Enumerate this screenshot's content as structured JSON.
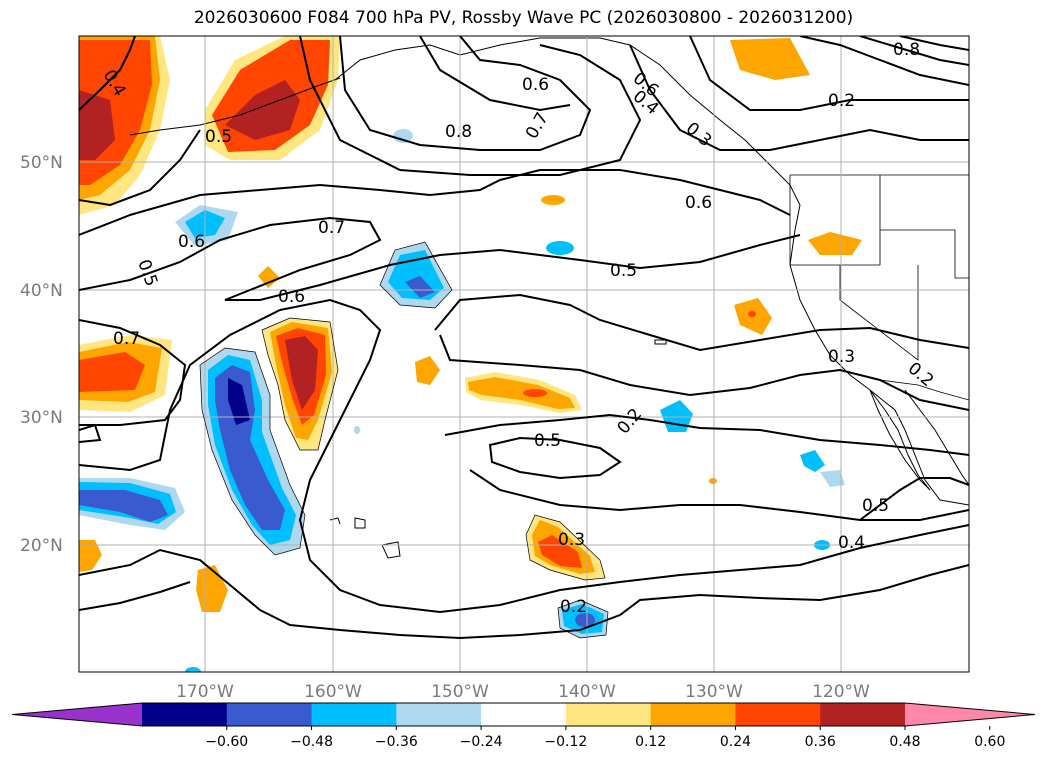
{
  "title": "2026030600 F084 700 hPa PV, Rossby Wave PC (2026030800 - 2026031200)",
  "lat_labels": [
    "50°N",
    "40°N",
    "30°N",
    "20°N"
  ],
  "lon_labels": [
    "170°W",
    "160°W",
    "150°W",
    "140°W",
    "130°W",
    "120°W"
  ],
  "colorbar": {
    "ticks": [
      "−0.60",
      "−0.48",
      "−0.36",
      "−0.24",
      "−0.12",
      "0.12",
      "0.24",
      "0.36",
      "0.48",
      "0.60"
    ],
    "colors": [
      "#9932cc",
      "#00008b",
      "#3a5bcf",
      "#00bfff",
      "#add8f0",
      "#ffffff",
      "#ffe680",
      "#ffa500",
      "#ff4500",
      "#b22222",
      "#ff88aa"
    ]
  },
  "contour_labels": [
    "0.4",
    "0.5",
    "0.6",
    "0.8",
    "0.7",
    "0.6",
    "0.4",
    "0.3",
    "0.8",
    "0.2",
    "0.6",
    "0.6",
    "0.5",
    "0.7",
    "0.5",
    "0.6",
    "0.7",
    "0.3",
    "0.2",
    "0.2",
    "0.5",
    "0.3",
    "0.5",
    "0.4",
    "0.2"
  ]
}
